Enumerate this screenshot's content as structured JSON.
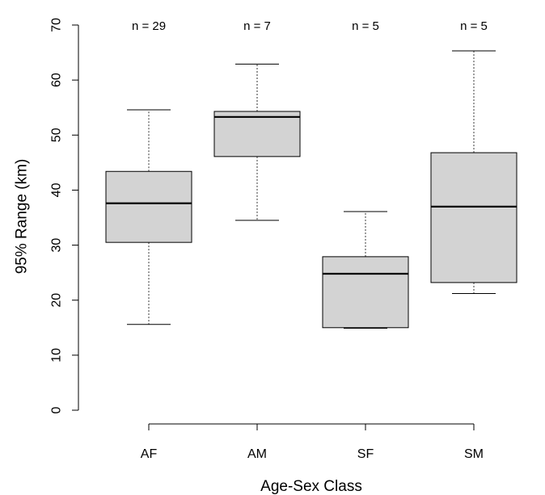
{
  "chart_data": {
    "type": "boxplot",
    "xlabel": "Age-Sex Class",
    "ylabel": "95% Range (km)",
    "ylim": [
      0,
      70
    ],
    "yticks": [
      0,
      10,
      20,
      30,
      40,
      50,
      60,
      70
    ],
    "grid": false,
    "box_color": "#d3d3d3",
    "categories": [
      "AF",
      "AM",
      "SF",
      "SM"
    ],
    "sample_labels": [
      "n = 29",
      "n = 7",
      "n = 5",
      "n = 5"
    ],
    "boxes": [
      {
        "category": "AF",
        "min": 15.6,
        "q1": 30.5,
        "median": 37.6,
        "q3": 43.4,
        "max": 54.6
      },
      {
        "category": "AM",
        "min": 34.5,
        "q1": 46.1,
        "median": 53.3,
        "q3": 54.3,
        "max": 62.9
      },
      {
        "category": "SF",
        "min": 14.9,
        "q1": 15.0,
        "median": 24.8,
        "q3": 27.9,
        "max": 36.1
      },
      {
        "category": "SM",
        "min": 21.2,
        "q1": 23.2,
        "median": 37.0,
        "q3": 46.8,
        "max": 65.3
      }
    ]
  }
}
